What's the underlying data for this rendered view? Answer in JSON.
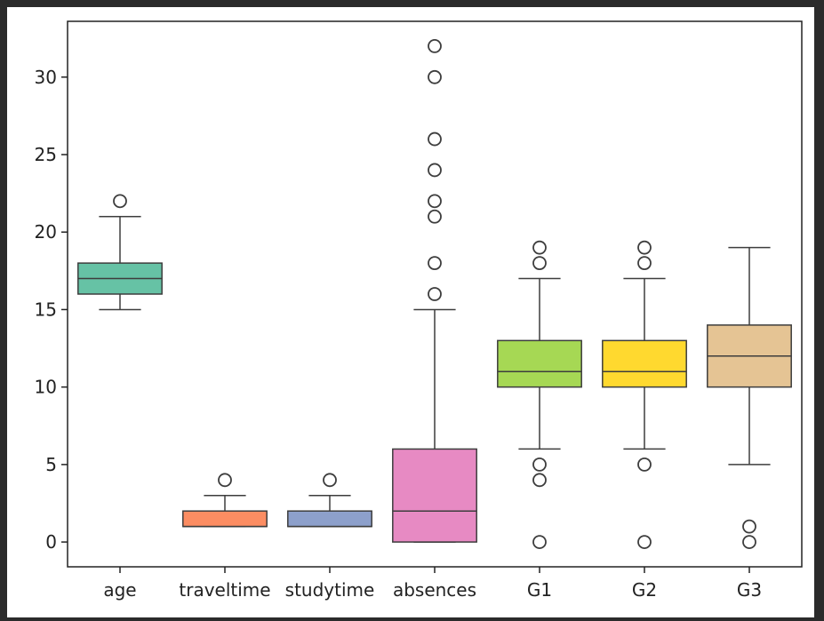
{
  "chart_data": {
    "type": "box",
    "title": "",
    "xlabel": "",
    "ylabel": "",
    "ylim": [
      -1.6,
      33.6
    ],
    "yticks": [
      0,
      5,
      10,
      15,
      20,
      25,
      30
    ],
    "ytick_labels": [
      "0",
      "5",
      "10",
      "15",
      "20",
      "25",
      "30"
    ],
    "grid": false,
    "categories": [
      "age",
      "traveltime",
      "studytime",
      "absences",
      "G1",
      "G2",
      "G3"
    ],
    "boxes": [
      {
        "name": "age",
        "whisker_low": 15,
        "q1": 16,
        "median": 17,
        "q3": 18,
        "whisker_high": 21,
        "outliers": [
          22
        ],
        "color": "#66c2a5"
      },
      {
        "name": "traveltime",
        "whisker_low": 1,
        "q1": 1,
        "median": 1,
        "q3": 2,
        "whisker_high": 3,
        "outliers": [
          4
        ],
        "color": "#fc8d62"
      },
      {
        "name": "studytime",
        "whisker_low": 1,
        "q1": 1,
        "median": 1,
        "q3": 2,
        "whisker_high": 3,
        "outliers": [
          4
        ],
        "color": "#8da0cb"
      },
      {
        "name": "absences",
        "whisker_low": 0,
        "q1": 0,
        "median": 2,
        "q3": 6,
        "whisker_high": 15,
        "outliers": [
          16,
          18,
          21,
          22,
          24,
          26,
          30,
          32
        ],
        "color": "#e78ac3"
      },
      {
        "name": "G1",
        "whisker_low": 6,
        "q1": 10,
        "median": 11,
        "q3": 13,
        "whisker_high": 17,
        "outliers": [
          0,
          4,
          5,
          18,
          19
        ],
        "color": "#a6d854"
      },
      {
        "name": "G2",
        "whisker_low": 6,
        "q1": 10,
        "median": 11,
        "q3": 13,
        "whisker_high": 17,
        "outliers": [
          0,
          5,
          18,
          19
        ],
        "color": "#ffd92f"
      },
      {
        "name": "G3",
        "whisker_low": 5,
        "q1": 10,
        "median": 12,
        "q3": 14,
        "whisker_high": 19,
        "outliers": [
          0,
          1
        ],
        "color": "#e5c494"
      }
    ]
  }
}
